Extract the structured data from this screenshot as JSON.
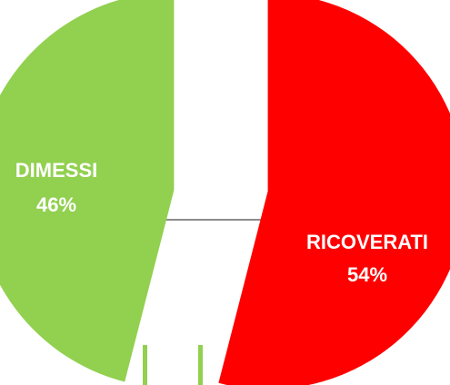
{
  "chart_data": {
    "type": "pie",
    "title": "",
    "slices": [
      {
        "label": "RICOVERATI",
        "percent_label": "54%",
        "value": 54,
        "color": "#FF0000"
      },
      {
        "label": "DIMESSI",
        "percent_label": "46%",
        "value": 46,
        "color": "#92D050"
      }
    ],
    "exploded": true,
    "legend": "none"
  }
}
